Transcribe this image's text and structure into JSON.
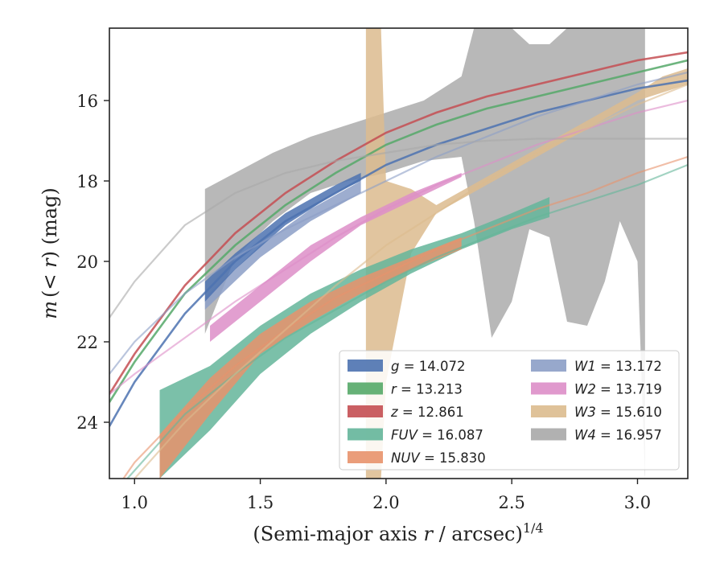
{
  "chart_data": {
    "type": "area",
    "xlabel_main": "(Semi-major axis ",
    "xlabel_var": "r",
    "xlabel_rest": " / arcsec)",
    "xlabel_sup": "1/4",
    "ylabel_var": "m",
    "ylabel_mid": "(< ",
    "ylabel_var2": "r",
    "ylabel_end": ") (mag)",
    "xlim": [
      0.9,
      3.2
    ],
    "ylim": [
      25.4,
      14.2
    ],
    "y_inverted": true,
    "xticks": [
      1.0,
      1.5,
      2.0,
      2.5,
      3.0
    ],
    "xtick_labels": [
      "1.0",
      "1.5",
      "2.0",
      "2.5",
      "3.0"
    ],
    "yticks": [
      16,
      18,
      20,
      22,
      24
    ],
    "ytick_labels": [
      "16",
      "18",
      "20",
      "22",
      "24"
    ],
    "legend_position": "lower-right",
    "series": [
      {
        "name": "g",
        "value": "14.072",
        "color": "#4c72b0",
        "model": [
          [
            0.9,
            24.1
          ],
          [
            1.0,
            23.0
          ],
          [
            1.2,
            21.3
          ],
          [
            1.4,
            20.0
          ],
          [
            1.6,
            19.0
          ],
          [
            1.8,
            18.3
          ],
          [
            2.0,
            17.6
          ],
          [
            2.2,
            17.1
          ],
          [
            2.4,
            16.7
          ],
          [
            2.6,
            16.3
          ],
          [
            2.8,
            16.0
          ],
          [
            3.0,
            15.7
          ],
          [
            3.2,
            15.5
          ]
        ],
        "band": [
          [
            1.28,
            21.0,
            20.5
          ],
          [
            1.4,
            20.2,
            19.8
          ],
          [
            1.6,
            19.1,
            18.8
          ],
          [
            1.8,
            18.3,
            18.1
          ],
          [
            1.9,
            18.0,
            17.8
          ]
        ]
      },
      {
        "name": "r",
        "value": "13.213",
        "color": "#55a868",
        "model": [
          [
            0.9,
            23.5
          ],
          [
            1.0,
            22.5
          ],
          [
            1.2,
            20.8
          ],
          [
            1.4,
            19.6
          ],
          [
            1.6,
            18.6
          ],
          [
            1.8,
            17.8
          ],
          [
            2.0,
            17.1
          ],
          [
            2.2,
            16.6
          ],
          [
            2.4,
            16.2
          ],
          [
            2.6,
            15.9
          ],
          [
            2.8,
            15.6
          ],
          [
            3.0,
            15.3
          ],
          [
            3.2,
            15.0
          ]
        ],
        "band": []
      },
      {
        "name": "z",
        "value": "12.861",
        "color": "#c44e52",
        "model": [
          [
            0.9,
            23.3
          ],
          [
            1.0,
            22.3
          ],
          [
            1.2,
            20.6
          ],
          [
            1.4,
            19.3
          ],
          [
            1.6,
            18.3
          ],
          [
            1.8,
            17.5
          ],
          [
            2.0,
            16.8
          ],
          [
            2.2,
            16.3
          ],
          [
            2.4,
            15.9
          ],
          [
            2.6,
            15.6
          ],
          [
            2.8,
            15.3
          ],
          [
            3.0,
            15.0
          ],
          [
            3.2,
            14.8
          ]
        ],
        "band": []
      },
      {
        "name": "FUV",
        "value": "16.087",
        "color": "#64b59a",
        "model": [
          [
            0.9,
            25.9
          ],
          [
            1.0,
            25.2
          ],
          [
            1.2,
            23.8
          ],
          [
            1.4,
            22.8
          ],
          [
            1.6,
            21.9
          ],
          [
            1.8,
            21.2
          ],
          [
            2.0,
            20.5
          ],
          [
            2.2,
            19.9
          ],
          [
            2.4,
            19.4
          ],
          [
            2.6,
            18.9
          ],
          [
            2.8,
            18.5
          ],
          [
            3.0,
            18.1
          ],
          [
            3.2,
            17.6
          ]
        ],
        "band": [
          [
            1.1,
            25.4,
            23.2
          ],
          [
            1.3,
            24.2,
            22.6
          ],
          [
            1.5,
            22.8,
            21.6
          ],
          [
            1.7,
            21.8,
            20.8
          ],
          [
            1.9,
            21.0,
            20.2
          ],
          [
            2.1,
            20.3,
            19.7
          ],
          [
            2.3,
            19.7,
            19.3
          ],
          [
            2.5,
            19.2,
            18.8
          ],
          [
            2.65,
            18.9,
            18.4
          ]
        ]
      },
      {
        "name": "NUV",
        "value": "15.830",
        "color": "#e8926c",
        "model": [
          [
            0.9,
            25.9
          ],
          [
            1.0,
            25.0
          ],
          [
            1.2,
            23.7
          ],
          [
            1.4,
            22.6
          ],
          [
            1.6,
            21.7
          ],
          [
            1.8,
            20.9
          ],
          [
            2.0,
            20.3
          ],
          [
            2.2,
            19.7
          ],
          [
            2.4,
            19.2
          ],
          [
            2.6,
            18.7
          ],
          [
            2.8,
            18.3
          ],
          [
            3.0,
            17.8
          ],
          [
            3.2,
            17.4
          ]
        ],
        "band": [
          [
            1.1,
            25.4,
            24.3
          ],
          [
            1.3,
            23.8,
            22.9
          ],
          [
            1.5,
            22.3,
            21.8
          ],
          [
            1.7,
            21.5,
            21.0
          ],
          [
            1.9,
            20.8,
            20.4
          ],
          [
            2.1,
            20.2,
            19.9
          ],
          [
            2.3,
            19.7,
            19.4
          ]
        ]
      },
      {
        "name": "W1",
        "value": "13.172",
        "color": "#8c9fc7",
        "model": [
          [
            0.9,
            22.8
          ],
          [
            1.0,
            22.0
          ],
          [
            1.2,
            20.8
          ],
          [
            1.4,
            19.9
          ],
          [
            1.6,
            19.2
          ],
          [
            1.8,
            18.6
          ],
          [
            2.0,
            18.0
          ],
          [
            2.2,
            17.4
          ],
          [
            2.4,
            16.9
          ],
          [
            2.6,
            16.4
          ],
          [
            2.8,
            16.0
          ],
          [
            3.0,
            15.6
          ],
          [
            3.2,
            15.3
          ]
        ],
        "band": [
          [
            1.28,
            21.2,
            20.9
          ],
          [
            1.5,
            19.9,
            19.6
          ],
          [
            1.7,
            19.0,
            18.7
          ],
          [
            1.9,
            18.3,
            18.0
          ]
        ]
      },
      {
        "name": "W2",
        "value": "13.719",
        "color": "#dd8ec8",
        "model": [
          [
            0.9,
            23.3
          ],
          [
            1.0,
            22.8
          ],
          [
            1.2,
            21.9
          ],
          [
            1.4,
            21.0
          ],
          [
            1.6,
            20.2
          ],
          [
            1.8,
            19.4
          ],
          [
            2.0,
            18.7
          ],
          [
            2.2,
            18.1
          ],
          [
            2.4,
            17.6
          ],
          [
            2.6,
            17.1
          ],
          [
            2.8,
            16.7
          ],
          [
            3.0,
            16.3
          ],
          [
            3.2,
            16.0
          ]
        ],
        "band": [
          [
            1.3,
            22.0,
            21.6
          ],
          [
            1.5,
            21.0,
            20.6
          ],
          [
            1.7,
            20.0,
            19.6
          ],
          [
            1.9,
            19.1,
            18.9
          ],
          [
            2.1,
            18.5,
            18.3
          ],
          [
            2.3,
            17.9,
            17.8
          ]
        ]
      },
      {
        "name": "W3",
        "value": "15.610",
        "color": "#dcbb8e",
        "model": [
          [
            0.9,
            25.9
          ],
          [
            1.0,
            25.4
          ],
          [
            1.2,
            24.0
          ],
          [
            1.4,
            22.8
          ],
          [
            1.6,
            21.7
          ],
          [
            1.8,
            20.6
          ],
          [
            2.0,
            19.6
          ],
          [
            2.2,
            18.8
          ],
          [
            2.4,
            18.0
          ],
          [
            2.6,
            17.3
          ],
          [
            2.8,
            16.7
          ],
          [
            3.0,
            16.1
          ],
          [
            3.2,
            15.6
          ]
        ],
        "band": [
          [
            1.92,
            25.4,
            14.2
          ],
          [
            1.98,
            25.4,
            14.2
          ],
          [
            2.0,
            23.0,
            18.0
          ],
          [
            2.1,
            19.8,
            18.2
          ],
          [
            2.2,
            18.8,
            18.6
          ],
          [
            3.0,
            16.0,
            15.8
          ],
          [
            3.1,
            15.8,
            15.4
          ],
          [
            3.2,
            15.6,
            15.2
          ]
        ]
      },
      {
        "name": "W4",
        "value": "16.957",
        "color": "#a8a8a8",
        "model": [
          [
            0.9,
            21.4
          ],
          [
            1.0,
            20.5
          ],
          [
            1.2,
            19.1
          ],
          [
            1.4,
            18.3
          ],
          [
            1.6,
            17.8
          ],
          [
            1.8,
            17.5
          ],
          [
            2.0,
            17.3
          ],
          [
            2.2,
            17.1
          ],
          [
            2.4,
            17.0
          ],
          [
            2.6,
            16.95
          ],
          [
            2.8,
            16.95
          ],
          [
            3.0,
            16.95
          ],
          [
            3.2,
            16.95
          ]
        ],
        "band": [
          [
            1.28,
            21.8,
            18.2
          ],
          [
            1.4,
            19.9,
            17.8
          ],
          [
            1.55,
            19.0,
            17.3
          ],
          [
            1.7,
            18.3,
            16.9
          ],
          [
            1.85,
            18.0,
            16.6
          ],
          [
            2.0,
            17.8,
            16.3
          ],
          [
            2.15,
            17.5,
            16.0
          ],
          [
            2.3,
            17.4,
            15.4
          ],
          [
            2.35,
            19.0,
            14.2
          ],
          [
            2.42,
            21.9,
            14.2
          ],
          [
            2.5,
            21.0,
            14.2
          ],
          [
            2.57,
            19.2,
            14.6
          ],
          [
            2.65,
            19.4,
            14.6
          ],
          [
            2.72,
            21.5,
            14.2
          ],
          [
            2.8,
            21.6,
            14.2
          ],
          [
            2.87,
            20.5,
            14.2
          ],
          [
            2.93,
            19.0,
            14.2
          ],
          [
            3.0,
            20.0,
            14.2
          ],
          [
            3.03,
            25.4,
            14.2
          ]
        ]
      }
    ]
  }
}
